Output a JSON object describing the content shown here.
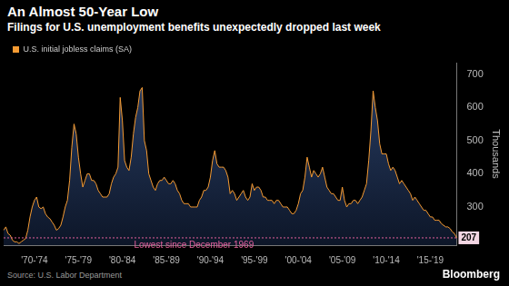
{
  "chart_data": {
    "type": "line",
    "title": "An Almost 50-Year Low",
    "subtitle": "Filings for U.S. unemployment benefits unexpectedly dropped last week",
    "source": "Source: U.S. Labor Department",
    "credit": "Bloomberg",
    "y_label": "Thousands",
    "legend": "top-left",
    "grid": false,
    "categories": [
      null,
      null,
      null,
      null,
      null,
      null,
      null,
      null,
      null,
      null,
      null,
      null,
      null,
      null,
      "'70-'74",
      null,
      null,
      null,
      null,
      null,
      null,
      null,
      null,
      null,
      null,
      null,
      null,
      null,
      null,
      null,
      null,
      null,
      null,
      null,
      "'75-'79",
      null,
      null,
      null,
      null,
      null,
      null,
      null,
      null,
      null,
      null,
      null,
      null,
      null,
      null,
      null,
      null,
      null,
      null,
      null,
      "'80-'84",
      null,
      null,
      null,
      null,
      null,
      null,
      null,
      null,
      null,
      null,
      null,
      null,
      null,
      null,
      null,
      null,
      null,
      null,
      null,
      "'85-'89",
      null,
      null,
      null,
      null,
      null,
      null,
      null,
      null,
      null,
      null,
      null,
      null,
      null,
      null,
      null,
      null,
      null,
      null,
      null,
      "'90-'94",
      null,
      null,
      null,
      null,
      null,
      null,
      null,
      null,
      null,
      null,
      null,
      null,
      null,
      null,
      null,
      null,
      null,
      null,
      null,
      "'95-'99",
      null,
      null,
      null,
      null,
      null,
      null,
      null,
      null,
      null,
      null,
      null,
      null,
      null,
      null,
      null,
      null,
      null,
      null,
      null,
      "'00-'04",
      null,
      null,
      null,
      null,
      null,
      null,
      null,
      null,
      null,
      null,
      null,
      null,
      null,
      null,
      null,
      null,
      null,
      null,
      null,
      "'05-'09",
      null,
      null,
      null,
      null,
      null,
      null,
      null,
      null,
      null,
      null,
      null,
      null,
      null,
      null,
      null,
      null,
      null,
      null,
      null,
      "'10-'14",
      null,
      null,
      null,
      null,
      null,
      null,
      null,
      null,
      null,
      null,
      null,
      null,
      null,
      null,
      null,
      null,
      null,
      null,
      null,
      "'15-'19",
      null,
      null,
      null,
      null,
      null,
      null,
      null,
      null,
      null,
      null,
      null,
      null
    ],
    "series": [
      {
        "name": "U.S. initial jobless claims (SA)",
        "color": "#f59b33",
        "values": [
          230,
          240,
          220,
          215,
          200,
          195,
          195,
          190,
          195,
          200,
          205,
          230,
          270,
          300,
          320,
          330,
          300,
          295,
          300,
          280,
          270,
          265,
          255,
          245,
          230,
          235,
          245,
          270,
          300,
          320,
          380,
          480,
          550,
          520,
          450,
          400,
          360,
          380,
          400,
          400,
          380,
          380,
          370,
          350,
          340,
          330,
          330,
          330,
          340,
          370,
          390,
          400,
          420,
          630,
          560,
          440,
          420,
          410,
          450,
          520,
          570,
          600,
          650,
          660,
          500,
          470,
          400,
          380,
          360,
          350,
          370,
          380,
          380,
          390,
          380,
          370,
          370,
          380,
          370,
          350,
          340,
          320,
          310,
          310,
          310,
          300,
          300,
          300,
          300,
          320,
          330,
          350,
          350,
          360,
          390,
          440,
          470,
          430,
          420,
          420,
          420,
          410,
          390,
          340,
          350,
          340,
          320,
          330,
          340,
          350,
          330,
          320,
          330,
          370,
          350,
          360,
          360,
          350,
          330,
          330,
          320,
          320,
          320,
          310,
          320,
          320,
          310,
          300,
          300,
          300,
          290,
          280,
          280,
          290,
          310,
          340,
          350,
          390,
          450,
          420,
          390,
          410,
          400,
          390,
          400,
          420,
          390,
          360,
          350,
          340,
          340,
          330,
          320,
          320,
          360,
          320,
          300,
          310,
          310,
          320,
          320,
          310,
          320,
          330,
          350,
          370,
          440,
          530,
          650,
          600,
          560,
          490,
          460,
          460,
          460,
          430,
          410,
          420,
          410,
          390,
          370,
          380,
          370,
          360,
          350,
          340,
          320,
          330,
          320,
          310,
          300,
          290,
          290,
          280,
          270,
          270,
          260,
          260,
          260,
          250,
          245,
          240,
          240,
          235,
          225,
          220,
          207
        ]
      }
    ],
    "ylim": [
      185,
      735
    ],
    "yticks": [
      300,
      400,
      500,
      600,
      700
    ],
    "reference_line": {
      "value": 207,
      "text": "Lowest since December 1969",
      "color": "#e4609d",
      "line_style": "dashed"
    }
  }
}
